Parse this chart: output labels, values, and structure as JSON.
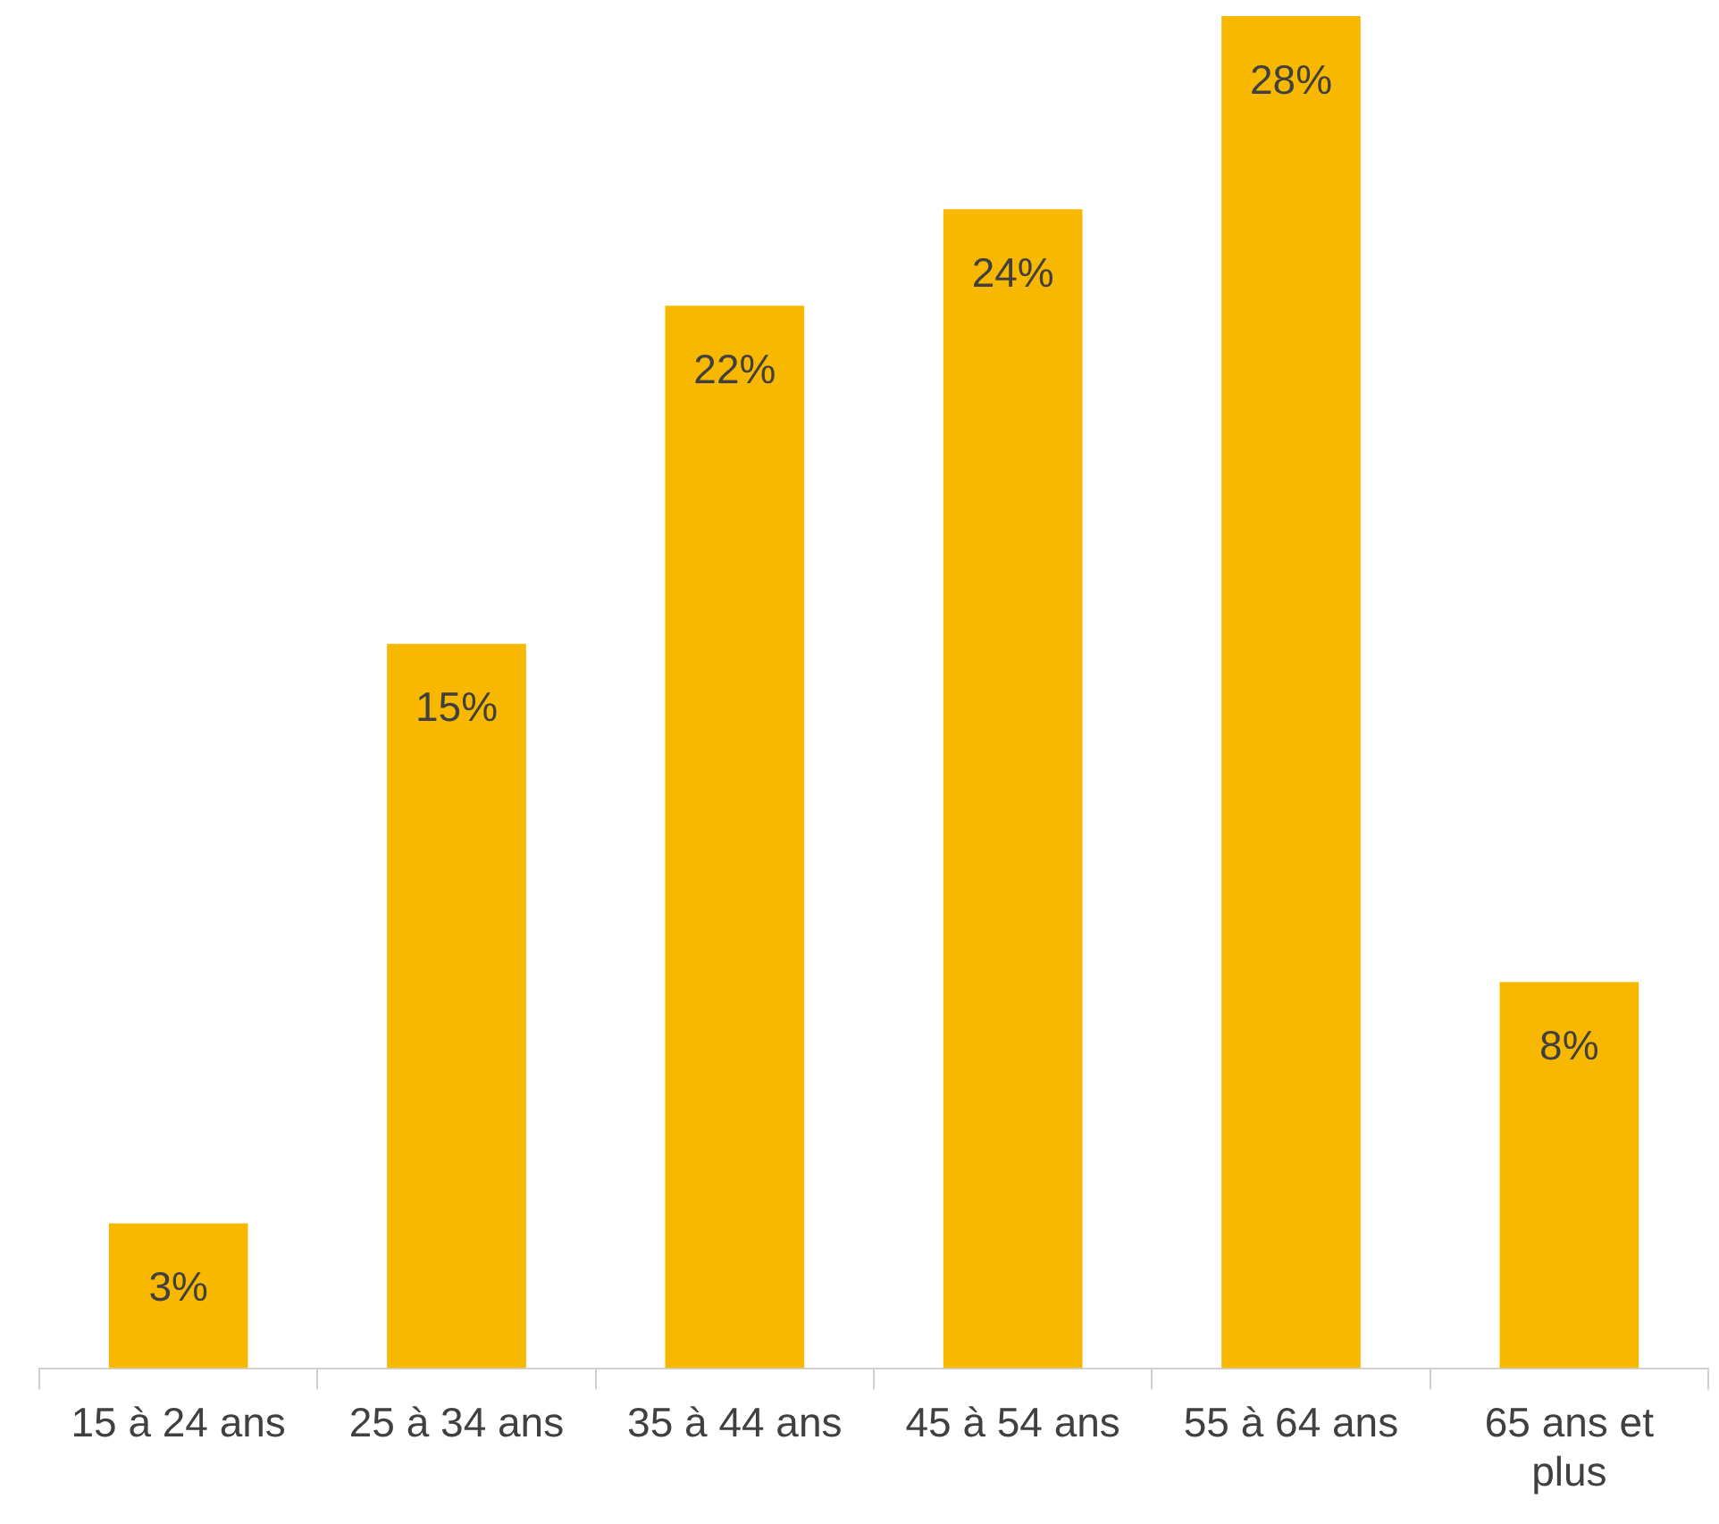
{
  "chart_data": {
    "type": "bar",
    "categories": [
      "15 à 24 ans",
      "25 à 34 ans",
      "35 à 44 ans",
      "45 à 54 ans",
      "55 à 64 ans",
      "65 ans et plus"
    ],
    "values": [
      3,
      15,
      22,
      24,
      28,
      8
    ],
    "value_labels": [
      "3%",
      "15%",
      "22%",
      "24%",
      "28%",
      "8%"
    ],
    "color": "#f9b800",
    "grid": false,
    "legend": false
  }
}
